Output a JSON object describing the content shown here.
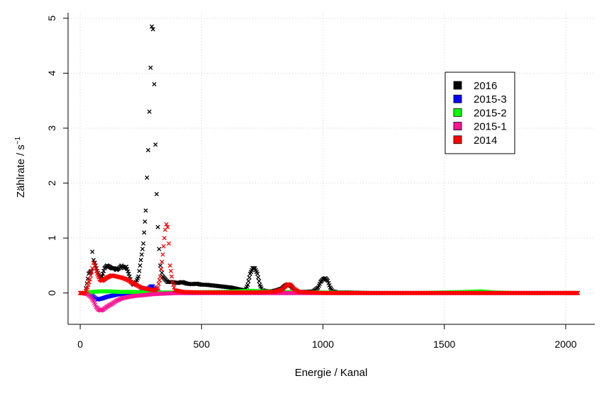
{
  "chart_data": {
    "type": "scatter",
    "xlabel": "Energie / Kanal",
    "ylabel": "Zählrate / s",
    "ylabel_sup": "−1",
    "xlim": [
      -50,
      2120
    ],
    "ylim": [
      -0.57,
      5.1
    ],
    "xticks": [
      0,
      500,
      1000,
      1500,
      2000
    ],
    "yticks": [
      0,
      1,
      2,
      3,
      4,
      5
    ],
    "xtick_labels": [
      "0",
      "500",
      "1000",
      "1500",
      "2000"
    ],
    "ytick_labels": [
      "0",
      "1",
      "2",
      "3",
      "4",
      "5"
    ],
    "grid": true,
    "legend_position": "top-right",
    "series": [
      {
        "name": "2016",
        "color": "#000000",
        "marker": "x",
        "points": [
          [
            0,
            0
          ],
          [
            20,
            0
          ],
          [
            35,
            0.35
          ],
          [
            45,
            0.4
          ],
          [
            50,
            0.75
          ],
          [
            55,
            0.6
          ],
          [
            60,
            0.55
          ],
          [
            70,
            0.4
          ],
          [
            80,
            0.3
          ],
          [
            90,
            0.3
          ],
          [
            100,
            0.45
          ],
          [
            110,
            0.5
          ],
          [
            120,
            0.48
          ],
          [
            130,
            0.45
          ],
          [
            140,
            0.45
          ],
          [
            150,
            0.42
          ],
          [
            160,
            0.45
          ],
          [
            170,
            0.5
          ],
          [
            180,
            0.45
          ],
          [
            190,
            0.48
          ],
          [
            200,
            0.35
          ],
          [
            210,
            0.2
          ],
          [
            220,
            0.15
          ],
          [
            230,
            0.2
          ],
          [
            240,
            0.3
          ],
          [
            250,
            0.6
          ],
          [
            260,
            0.9
          ],
          [
            270,
            1.5
          ],
          [
            275,
            2.1
          ],
          [
            280,
            2.6
          ],
          [
            285,
            3.3
          ],
          [
            290,
            4.1
          ],
          [
            295,
            4.85
          ],
          [
            300,
            4.8
          ],
          [
            305,
            3.8
          ],
          [
            310,
            2.7
          ],
          [
            315,
            1.8
          ],
          [
            320,
            1.2
          ],
          [
            325,
            0.8
          ],
          [
            330,
            0.5
          ],
          [
            340,
            0.3
          ],
          [
            350,
            0.25
          ],
          [
            360,
            0.2
          ],
          [
            380,
            0.2
          ],
          [
            400,
            0.18
          ],
          [
            420,
            0.2
          ],
          [
            440,
            0.17
          ],
          [
            460,
            0.16
          ],
          [
            480,
            0.17
          ],
          [
            500,
            0.15
          ],
          [
            520,
            0.15
          ],
          [
            540,
            0.14
          ],
          [
            560,
            0.13
          ],
          [
            580,
            0.12
          ],
          [
            600,
            0.11
          ],
          [
            620,
            0.1
          ],
          [
            640,
            0.08
          ],
          [
            660,
            0.06
          ],
          [
            680,
            0.05
          ],
          [
            690,
            0.15
          ],
          [
            700,
            0.35
          ],
          [
            710,
            0.45
          ],
          [
            720,
            0.45
          ],
          [
            730,
            0.35
          ],
          [
            740,
            0.15
          ],
          [
            750,
            0.05
          ],
          [
            770,
            0.03
          ],
          [
            790,
            0.03
          ],
          [
            810,
            0.05
          ],
          [
            830,
            0.08
          ],
          [
            840,
            0.12
          ],
          [
            850,
            0.15
          ],
          [
            860,
            0.15
          ],
          [
            870,
            0.12
          ],
          [
            880,
            0.05
          ],
          [
            900,
            0.02
          ],
          [
            930,
            0.02
          ],
          [
            960,
            0.03
          ],
          [
            980,
            0.1
          ],
          [
            990,
            0.2
          ],
          [
            1000,
            0.25
          ],
          [
            1010,
            0.27
          ],
          [
            1020,
            0.22
          ],
          [
            1030,
            0.1
          ],
          [
            1040,
            0.03
          ],
          [
            1060,
            0.01
          ],
          [
            1100,
            0.01
          ],
          [
            1200,
            0
          ],
          [
            1400,
            0
          ],
          [
            1600,
            0
          ],
          [
            1800,
            0
          ],
          [
            2000,
            0
          ],
          [
            2050,
            0
          ]
        ]
      },
      {
        "name": "2015-3",
        "color": "#0000ff",
        "marker": "x",
        "points": [
          [
            0,
            0
          ],
          [
            30,
            0
          ],
          [
            50,
            -0.05
          ],
          [
            70,
            -0.12
          ],
          [
            90,
            -0.1
          ],
          [
            110,
            -0.07
          ],
          [
            130,
            -0.05
          ],
          [
            150,
            -0.03
          ],
          [
            170,
            -0.02
          ],
          [
            200,
            -0.01
          ],
          [
            240,
            0
          ],
          [
            270,
            0.05
          ],
          [
            290,
            0.12
          ],
          [
            300,
            0.12
          ],
          [
            310,
            0.05
          ],
          [
            330,
            0
          ],
          [
            400,
            0
          ],
          [
            500,
            0
          ],
          [
            700,
            0
          ],
          [
            1000,
            0
          ],
          [
            1500,
            0
          ],
          [
            2000,
            0
          ],
          [
            2050,
            0
          ]
        ]
      },
      {
        "name": "2015-2",
        "color": "#00ff00",
        "marker": "x",
        "points": [
          [
            0,
            0
          ],
          [
            30,
            0
          ],
          [
            50,
            0.02
          ],
          [
            80,
            0.03
          ],
          [
            120,
            0.03
          ],
          [
            160,
            0.02
          ],
          [
            200,
            0.02
          ],
          [
            300,
            0.01
          ],
          [
            400,
            0.01
          ],
          [
            600,
            0.02
          ],
          [
            700,
            0.04
          ],
          [
            800,
            0.02
          ],
          [
            1000,
            0.01
          ],
          [
            1200,
            0
          ],
          [
            1400,
            0
          ],
          [
            1600,
            0.02
          ],
          [
            1650,
            0.03
          ],
          [
            1700,
            0.01
          ],
          [
            1800,
            0
          ],
          [
            2000,
            0
          ],
          [
            2050,
            0
          ]
        ]
      },
      {
        "name": "2015-1",
        "color": "#ff1493",
        "marker": "x",
        "points": [
          [
            0,
            0
          ],
          [
            30,
            -0.02
          ],
          [
            45,
            -0.08
          ],
          [
            55,
            -0.15
          ],
          [
            65,
            -0.25
          ],
          [
            75,
            -0.3
          ],
          [
            85,
            -0.32
          ],
          [
            95,
            -0.3
          ],
          [
            110,
            -0.25
          ],
          [
            130,
            -0.2
          ],
          [
            150,
            -0.14
          ],
          [
            170,
            -0.1
          ],
          [
            200,
            -0.07
          ],
          [
            230,
            -0.05
          ],
          [
            260,
            -0.04
          ],
          [
            300,
            -0.02
          ],
          [
            350,
            -0.01
          ],
          [
            400,
            0
          ],
          [
            450,
            0
          ],
          [
            500,
            0
          ],
          [
            800,
            0
          ],
          [
            1000,
            0
          ],
          [
            1200,
            0
          ],
          [
            1500,
            0
          ],
          [
            2000,
            0
          ],
          [
            2050,
            0
          ]
        ]
      },
      {
        "name": "2014",
        "color": "#ff0000",
        "marker": "x",
        "points": [
          [
            0,
            0
          ],
          [
            20,
            0
          ],
          [
            30,
            0.1
          ],
          [
            40,
            0.25
          ],
          [
            50,
            0.45
          ],
          [
            55,
            0.55
          ],
          [
            60,
            0.5
          ],
          [
            70,
            0.35
          ],
          [
            80,
            0.25
          ],
          [
            90,
            0.22
          ],
          [
            100,
            0.25
          ],
          [
            110,
            0.28
          ],
          [
            120,
            0.3
          ],
          [
            130,
            0.32
          ],
          [
            150,
            0.3
          ],
          [
            170,
            0.28
          ],
          [
            190,
            0.25
          ],
          [
            210,
            0.2
          ],
          [
            230,
            0.15
          ],
          [
            250,
            0.1
          ],
          [
            270,
            0.08
          ],
          [
            290,
            0.06
          ],
          [
            310,
            0.05
          ],
          [
            320,
            0.1
          ],
          [
            330,
            0.3
          ],
          [
            340,
            0.7
          ],
          [
            350,
            1.15
          ],
          [
            355,
            1.25
          ],
          [
            360,
            1.2
          ],
          [
            365,
            0.9
          ],
          [
            370,
            0.5
          ],
          [
            380,
            0.2
          ],
          [
            390,
            0.05
          ],
          [
            420,
            0.02
          ],
          [
            500,
            0.01
          ],
          [
            700,
            0.01
          ],
          [
            800,
            0.02
          ],
          [
            830,
            0.06
          ],
          [
            845,
            0.12
          ],
          [
            855,
            0.16
          ],
          [
            865,
            0.15
          ],
          [
            880,
            0.08
          ],
          [
            900,
            0.02
          ],
          [
            1000,
            0
          ],
          [
            1200,
            0
          ],
          [
            1500,
            0
          ],
          [
            2000,
            0
          ],
          [
            2050,
            0
          ]
        ]
      }
    ]
  }
}
